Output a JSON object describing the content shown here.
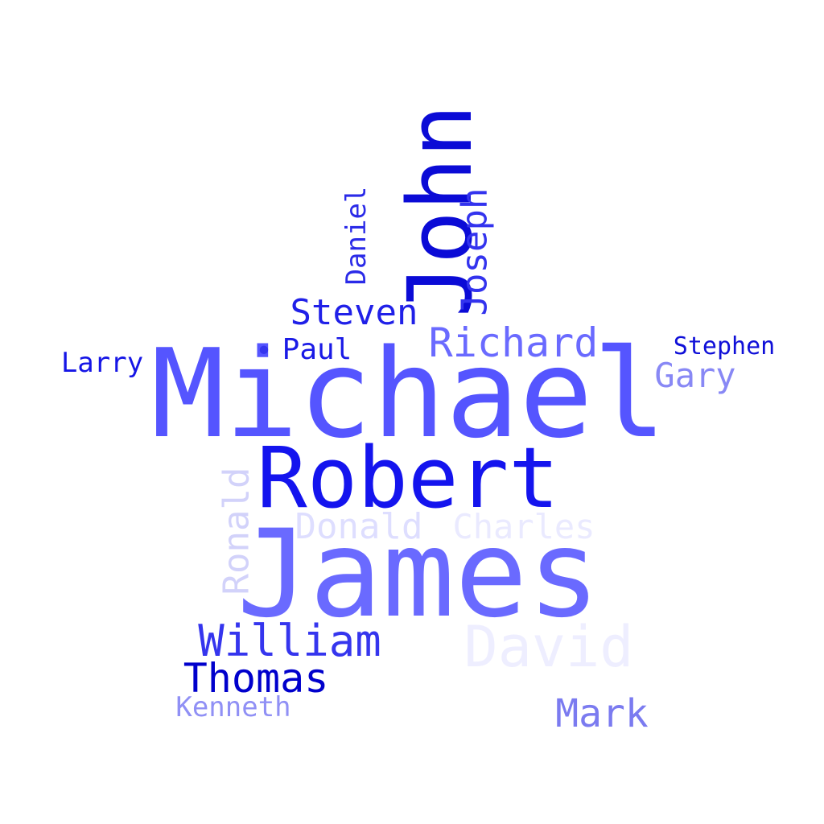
{
  "words": [
    {
      "text": "Michael",
      "color": "#5555ff",
      "rotated": false
    },
    {
      "text": "James",
      "color": "#6a6aff",
      "rotated": false
    },
    {
      "text": "John",
      "color": "#0b0bd6",
      "rotated": true
    },
    {
      "text": "Robert",
      "color": "#1414ee",
      "rotated": false
    },
    {
      "text": "David",
      "color": "#eeeeff",
      "rotated": false
    },
    {
      "text": "William",
      "color": "#3535ee",
      "rotated": false
    },
    {
      "text": "Richard",
      "color": "#6a6aff",
      "rotated": false
    },
    {
      "text": "Thomas",
      "color": "#0000cc",
      "rotated": false
    },
    {
      "text": "Mark",
      "color": "#7b7bf0",
      "rotated": false
    },
    {
      "text": "Charles",
      "color": "#eaeaff",
      "rotated": false
    },
    {
      "text": "Steven",
      "color": "#2020e8",
      "rotated": false
    },
    {
      "text": "Joseph",
      "color": "#3333ee",
      "rotated": true
    },
    {
      "text": "Donald",
      "color": "#dedeff",
      "rotated": false
    },
    {
      "text": "Ronald",
      "color": "#d2d2fa",
      "rotated": true
    },
    {
      "text": "Gary",
      "color": "#8888f5",
      "rotated": false
    },
    {
      "text": "Kenneth",
      "color": "#9090f5",
      "rotated": false
    },
    {
      "text": "Paul",
      "color": "#1a1ae6",
      "rotated": false
    },
    {
      "text": "Larry",
      "color": "#1515e6",
      "rotated": false
    },
    {
      "text": "Daniel",
      "color": "#2a2ae8",
      "rotated": true
    },
    {
      "text": "Stephen",
      "color": "#0f0fd8",
      "rotated": false
    },
    {
      "text": "•",
      "color": "#3535ee",
      "rotated": false
    }
  ]
}
